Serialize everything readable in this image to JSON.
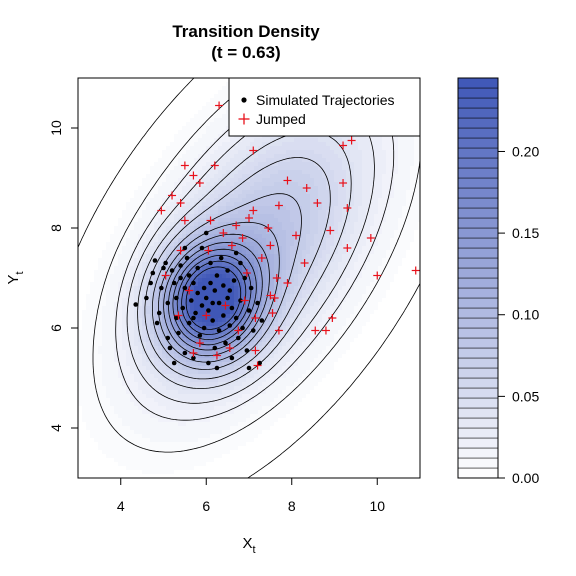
{
  "chart_data": {
    "type": "scatter",
    "title": "Transition Density",
    "subtitle": "(t = 0.63)",
    "xlabel": "X",
    "xlabel_sub": "t",
    "ylabel": "Y",
    "ylabel_sub": "t",
    "xlim": [
      3,
      11
    ],
    "ylim": [
      3,
      11
    ],
    "x_ticks": [
      "4",
      "6",
      "8",
      "10"
    ],
    "y_ticks": [
      "4",
      "6",
      "8",
      "10"
    ],
    "grid": false,
    "legend_position": "top-right",
    "density": {
      "center": [
        6.1,
        6.55
      ],
      "peak_value": 0.245,
      "contour_levels": [
        0.002,
        0.01,
        0.02,
        0.03,
        0.045,
        0.06,
        0.08,
        0.1,
        0.12,
        0.14,
        0.16,
        0.18,
        0.2,
        0.22
      ],
      "colorbar_ticks": [
        "0.00",
        "0.05",
        "0.10",
        "0.15",
        "0.20"
      ],
      "colorbar_range": [
        0,
        0.245
      ],
      "color_low": "#ffffff",
      "color_high": "#3f57b7"
    },
    "series": [
      {
        "name": "Simulated Trajectories",
        "marker": "dot",
        "color": "#000000",
        "points": [
          [
            4.35,
            6.47
          ],
          [
            4.6,
            6.6
          ],
          [
            4.7,
            6.9
          ],
          [
            4.75,
            7.1
          ],
          [
            4.8,
            7.35
          ],
          [
            4.85,
            6.1
          ],
          [
            4.9,
            6.3
          ],
          [
            4.95,
            6.8
          ],
          [
            5.0,
            7.2
          ],
          [
            5.05,
            7.3
          ],
          [
            5.1,
            6.5
          ],
          [
            5.1,
            5.8
          ],
          [
            5.15,
            5.6
          ],
          [
            5.2,
            7.15
          ],
          [
            5.25,
            6.9
          ],
          [
            5.3,
            6.2
          ],
          [
            5.3,
            6.6
          ],
          [
            5.35,
            5.9
          ],
          [
            5.4,
            7.0
          ],
          [
            5.4,
            7.25
          ],
          [
            5.45,
            6.4
          ],
          [
            5.5,
            5.5
          ],
          [
            5.5,
            6.8
          ],
          [
            5.55,
            7.4
          ],
          [
            5.6,
            6.1
          ],
          [
            5.6,
            7.05
          ],
          [
            5.65,
            6.55
          ],
          [
            5.7,
            5.4
          ],
          [
            5.7,
            6.9
          ],
          [
            5.75,
            6.3
          ],
          [
            5.8,
            7.2
          ],
          [
            5.8,
            6.7
          ],
          [
            5.85,
            5.85
          ],
          [
            5.9,
            6.45
          ],
          [
            5.9,
            7.6
          ],
          [
            5.95,
            6.0
          ],
          [
            6.0,
            6.6
          ],
          [
            6.0,
            7.9
          ],
          [
            6.05,
            5.3
          ],
          [
            6.05,
            6.35
          ],
          [
            6.1,
            6.9
          ],
          [
            6.1,
            7.3
          ],
          [
            6.15,
            6.15
          ],
          [
            6.2,
            6.75
          ],
          [
            6.2,
            5.6
          ],
          [
            6.25,
            7.05
          ],
          [
            6.3,
            6.5
          ],
          [
            6.3,
            5.95
          ],
          [
            6.35,
            7.4
          ],
          [
            6.4,
            6.25
          ],
          [
            6.4,
            6.85
          ],
          [
            6.45,
            5.7
          ],
          [
            6.5,
            6.6
          ],
          [
            6.5,
            7.15
          ],
          [
            6.55,
            6.05
          ],
          [
            6.6,
            6.4
          ],
          [
            6.6,
            5.4
          ],
          [
            6.65,
            6.95
          ],
          [
            6.7,
            6.2
          ],
          [
            6.7,
            7.5
          ],
          [
            6.75,
            5.8
          ],
          [
            6.8,
            6.55
          ],
          [
            6.85,
            6.0
          ],
          [
            6.9,
            7.0
          ],
          [
            6.95,
            5.55
          ],
          [
            7.0,
            6.35
          ],
          [
            7.05,
            6.8
          ],
          [
            7.1,
            5.95
          ],
          [
            7.2,
            6.5
          ],
          [
            7.25,
            5.3
          ],
          [
            7.3,
            6.15
          ],
          [
            7.0,
            5.2
          ],
          [
            5.25,
            5.3
          ],
          [
            5.5,
            7.6
          ],
          [
            6.25,
            5.2
          ],
          [
            6.8,
            7.3
          ],
          [
            5.95,
            6.8
          ],
          [
            6.15,
            6.5
          ],
          [
            5.7,
            6.2
          ],
          [
            6.55,
            6.75
          ]
        ]
      },
      {
        "name": "Jumped",
        "marker": "plus",
        "color": "#e8101a",
        "points": [
          [
            6.3,
            10.45
          ],
          [
            6.65,
            10.35
          ],
          [
            7.0,
            10.2
          ],
          [
            8.4,
            10.1
          ],
          [
            9.2,
            9.65
          ],
          [
            9.4,
            9.75
          ],
          [
            7.1,
            9.55
          ],
          [
            6.2,
            9.25
          ],
          [
            5.5,
            9.25
          ],
          [
            5.7,
            9.05
          ],
          [
            5.85,
            8.9
          ],
          [
            5.2,
            8.65
          ],
          [
            5.4,
            8.5
          ],
          [
            7.9,
            8.95
          ],
          [
            8.35,
            8.8
          ],
          [
            9.2,
            8.9
          ],
          [
            4.95,
            8.35
          ],
          [
            7.1,
            8.35
          ],
          [
            7.7,
            8.45
          ],
          [
            8.6,
            8.5
          ],
          [
            9.3,
            8.4
          ],
          [
            5.5,
            8.15
          ],
          [
            6.1,
            8.15
          ],
          [
            6.4,
            7.9
          ],
          [
            6.7,
            8.05
          ],
          [
            7.0,
            8.2
          ],
          [
            7.45,
            8.0
          ],
          [
            8.1,
            7.85
          ],
          [
            8.9,
            7.95
          ],
          [
            6.85,
            7.8
          ],
          [
            7.5,
            7.65
          ],
          [
            9.3,
            7.6
          ],
          [
            9.85,
            7.8
          ],
          [
            5.4,
            7.55
          ],
          [
            6.05,
            7.55
          ],
          [
            6.6,
            7.65
          ],
          [
            7.3,
            7.4
          ],
          [
            10.0,
            7.05
          ],
          [
            10.9,
            7.15
          ],
          [
            5.05,
            7.05
          ],
          [
            7.65,
            7.0
          ],
          [
            7.9,
            6.9
          ],
          [
            8.3,
            7.3
          ],
          [
            7.5,
            6.65
          ],
          [
            5.6,
            6.75
          ],
          [
            6.0,
            6.25
          ],
          [
            6.45,
            6.45
          ],
          [
            6.9,
            6.55
          ],
          [
            7.15,
            6.2
          ],
          [
            7.7,
            5.95
          ],
          [
            8.55,
            5.95
          ],
          [
            8.95,
            6.2
          ],
          [
            8.8,
            5.95
          ],
          [
            5.85,
            5.7
          ],
          [
            6.55,
            5.6
          ],
          [
            7.15,
            5.55
          ],
          [
            7.2,
            5.25
          ],
          [
            5.7,
            5.5
          ],
          [
            6.25,
            5.45
          ],
          [
            7.6,
            6.6
          ],
          [
            5.35,
            6.25
          ],
          [
            6.75,
            5.95
          ],
          [
            7.55,
            6.3
          ],
          [
            6.95,
            7.1
          ]
        ]
      }
    ]
  }
}
